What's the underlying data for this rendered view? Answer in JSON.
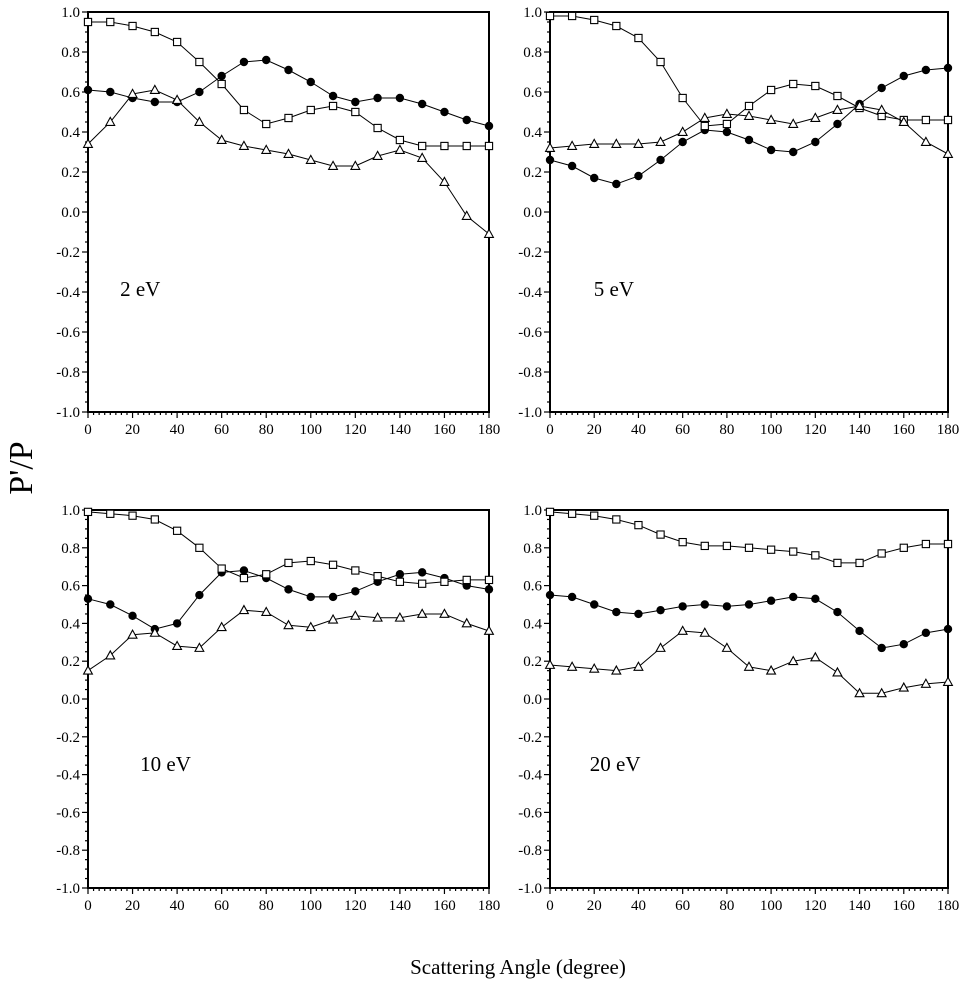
{
  "figure": {
    "ylabel": "P'/P",
    "xlabel": "Scattering Angle (degree)"
  },
  "chart_data": [
    {
      "type": "line",
      "annotation": "2 eV",
      "x": [
        0,
        10,
        20,
        30,
        40,
        50,
        60,
        70,
        80,
        90,
        100,
        110,
        120,
        130,
        140,
        150,
        160,
        170,
        180
      ],
      "xlim": [
        0,
        180
      ],
      "ylim": [
        -1.0,
        1.0
      ],
      "xticks": [
        "0",
        "20",
        "40",
        "60",
        "80",
        "100",
        "120",
        "140",
        "160",
        "180"
      ],
      "yticks": [
        "1.0",
        "0.8",
        "0.6",
        "0.4",
        "0.2",
        "0.0",
        "-0.2",
        "-0.4",
        "-0.6",
        "-0.8",
        "-1.0"
      ],
      "grid": false,
      "series": [
        {
          "marker": "filled-circle",
          "values": [
            0.61,
            0.6,
            0.57,
            0.55,
            0.55,
            0.6,
            0.68,
            0.75,
            0.76,
            0.71,
            0.65,
            0.58,
            0.55,
            0.57,
            0.57,
            0.54,
            0.5,
            0.46,
            0.43
          ]
        },
        {
          "marker": "open-square",
          "values": [
            0.95,
            0.95,
            0.93,
            0.9,
            0.85,
            0.75,
            0.64,
            0.51,
            0.44,
            0.47,
            0.51,
            0.53,
            0.5,
            0.42,
            0.36,
            0.33,
            0.33,
            0.33,
            0.33
          ]
        },
        {
          "marker": "open-triangle",
          "values": [
            0.34,
            0.45,
            0.59,
            0.61,
            0.56,
            0.45,
            0.36,
            0.33,
            0.31,
            0.29,
            0.26,
            0.23,
            0.23,
            0.28,
            0.31,
            0.27,
            0.15,
            -0.02,
            -0.11
          ]
        }
      ]
    },
    {
      "type": "line",
      "annotation": "5 eV",
      "x": [
        0,
        10,
        20,
        30,
        40,
        50,
        60,
        70,
        80,
        90,
        100,
        110,
        120,
        130,
        140,
        150,
        160,
        170,
        180
      ],
      "xlim": [
        0,
        180
      ],
      "ylim": [
        -1.0,
        1.0
      ],
      "xticks": [
        "0",
        "20",
        "40",
        "60",
        "80",
        "100",
        "120",
        "140",
        "160",
        "180"
      ],
      "yticks": [
        "1.0",
        "0.8",
        "0.6",
        "0.4",
        "0.2",
        "0.0",
        "-0.2",
        "-0.4",
        "-0.6",
        "-0.8",
        "-1.0"
      ],
      "grid": false,
      "series": [
        {
          "marker": "filled-circle",
          "values": [
            0.26,
            0.23,
            0.17,
            0.14,
            0.18,
            0.26,
            0.35,
            0.41,
            0.4,
            0.36,
            0.31,
            0.3,
            0.35,
            0.44,
            0.54,
            0.62,
            0.68,
            0.71,
            0.72
          ]
        },
        {
          "marker": "open-square",
          "values": [
            0.98,
            0.98,
            0.96,
            0.93,
            0.87,
            0.75,
            0.57,
            0.43,
            0.44,
            0.53,
            0.61,
            0.64,
            0.63,
            0.58,
            0.52,
            0.48,
            0.46,
            0.46,
            0.46
          ]
        },
        {
          "marker": "open-triangle",
          "values": [
            0.32,
            0.33,
            0.34,
            0.34,
            0.34,
            0.35,
            0.4,
            0.47,
            0.49,
            0.48,
            0.46,
            0.44,
            0.47,
            0.51,
            0.53,
            0.51,
            0.45,
            0.35,
            0.29
          ]
        }
      ]
    },
    {
      "type": "line",
      "annotation": "10 eV",
      "x": [
        0,
        10,
        20,
        30,
        40,
        50,
        60,
        70,
        80,
        90,
        100,
        110,
        120,
        130,
        140,
        150,
        160,
        170,
        180
      ],
      "xlim": [
        0,
        180
      ],
      "ylim": [
        -1.0,
        1.0
      ],
      "xticks": [
        "0",
        "20",
        "40",
        "60",
        "80",
        "100",
        "120",
        "140",
        "160",
        "180"
      ],
      "yticks": [
        "1.0",
        "0.8",
        "0.6",
        "0.4",
        "0.2",
        "0.0",
        "-0.2",
        "-0.4",
        "-0.6",
        "-0.8",
        "-1.0"
      ],
      "grid": false,
      "series": [
        {
          "marker": "filled-circle",
          "values": [
            0.53,
            0.5,
            0.44,
            0.37,
            0.4,
            0.55,
            0.67,
            0.68,
            0.64,
            0.58,
            0.54,
            0.54,
            0.57,
            0.62,
            0.66,
            0.67,
            0.64,
            0.6,
            0.58
          ]
        },
        {
          "marker": "open-square",
          "values": [
            0.99,
            0.98,
            0.97,
            0.95,
            0.89,
            0.8,
            0.69,
            0.64,
            0.66,
            0.72,
            0.73,
            0.71,
            0.68,
            0.65,
            0.62,
            0.61,
            0.62,
            0.63,
            0.63
          ]
        },
        {
          "marker": "open-triangle",
          "values": [
            0.15,
            0.23,
            0.34,
            0.35,
            0.28,
            0.27,
            0.38,
            0.47,
            0.46,
            0.39,
            0.38,
            0.42,
            0.44,
            0.43,
            0.43,
            0.45,
            0.45,
            0.4,
            0.36
          ]
        }
      ]
    },
    {
      "type": "line",
      "annotation": "20 eV",
      "x": [
        0,
        10,
        20,
        30,
        40,
        50,
        60,
        70,
        80,
        90,
        100,
        110,
        120,
        130,
        140,
        150,
        160,
        170,
        180
      ],
      "xlim": [
        0,
        180
      ],
      "ylim": [
        -1.0,
        1.0
      ],
      "xticks": [
        "0",
        "20",
        "40",
        "60",
        "80",
        "100",
        "120",
        "140",
        "160",
        "180"
      ],
      "yticks": [
        "1.0",
        "0.8",
        "0.6",
        "0.4",
        "0.2",
        "0.0",
        "-0.2",
        "-0.4",
        "-0.6",
        "-0.8",
        "-1.0"
      ],
      "grid": false,
      "series": [
        {
          "marker": "filled-circle",
          "values": [
            0.55,
            0.54,
            0.5,
            0.46,
            0.45,
            0.47,
            0.49,
            0.5,
            0.49,
            0.5,
            0.52,
            0.54,
            0.53,
            0.46,
            0.36,
            0.27,
            0.29,
            0.35,
            0.37
          ]
        },
        {
          "marker": "open-square",
          "values": [
            0.99,
            0.98,
            0.97,
            0.95,
            0.92,
            0.87,
            0.83,
            0.81,
            0.81,
            0.8,
            0.79,
            0.78,
            0.76,
            0.72,
            0.72,
            0.77,
            0.8,
            0.82,
            0.82
          ]
        },
        {
          "marker": "open-triangle",
          "values": [
            0.18,
            0.17,
            0.16,
            0.15,
            0.17,
            0.27,
            0.36,
            0.35,
            0.27,
            0.17,
            0.15,
            0.2,
            0.22,
            0.14,
            0.03,
            0.03,
            0.06,
            0.08,
            0.09
          ]
        }
      ]
    }
  ]
}
